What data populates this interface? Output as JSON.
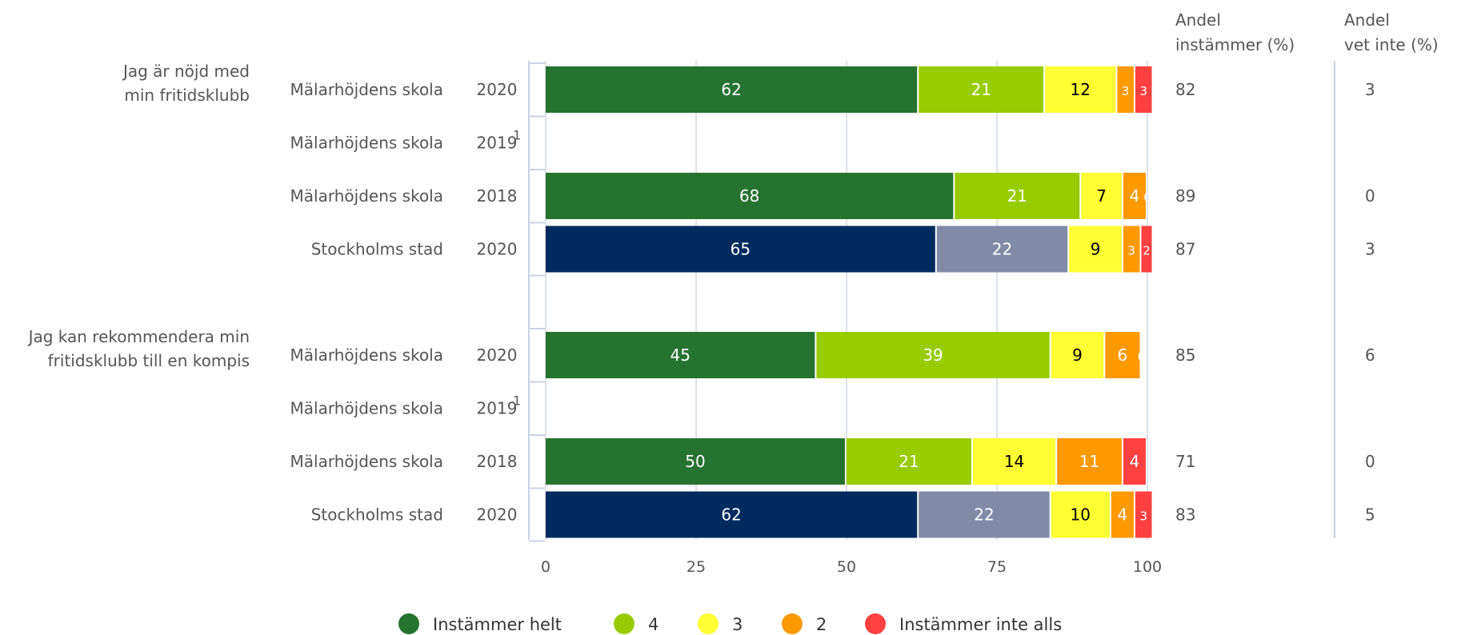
{
  "chart_data": {
    "type": "bar",
    "orientation": "horizontal",
    "stacked": true,
    "xlim": [
      0,
      100
    ],
    "xticks": [
      0,
      25,
      50,
      75,
      100
    ],
    "grid": true,
    "legend_position": "bottom",
    "column_headers": {
      "agree": [
        "Andel",
        "instämmer (%)"
      ],
      "dontknow": [
        "Andel",
        "vet inte (%)"
      ]
    },
    "legend": [
      {
        "label": "Instämmer helt",
        "color": "#267330"
      },
      {
        "label": "4",
        "color": "#99cc00"
      },
      {
        "label": "3",
        "color": "#ffff33"
      },
      {
        "label": "2",
        "color": "#ff9900"
      },
      {
        "label": "Instämmer inte alls",
        "color": "#ff4040"
      }
    ],
    "group_colors": {
      "school": [
        "#267330",
        "#99cc00",
        "#ffff33",
        "#ff9900",
        "#ff4040"
      ],
      "city": [
        "#002b5e",
        "#818ba6",
        "#ffff33",
        "#ff9900",
        "#ff4040"
      ]
    },
    "groups": [
      {
        "question": [
          "Jag är nöjd med",
          "min fritidsklubb"
        ],
        "rows": [
          {
            "label": "Mälarhöjdens skola",
            "year": "2020",
            "footnote": "",
            "style": "school",
            "values": [
              62,
              21,
              12,
              3,
              3
            ],
            "agree": "82",
            "dontknow": "3"
          },
          {
            "label": "Mälarhöjdens skola",
            "year": "2019",
            "footnote": "1",
            "style": "school",
            "values": [],
            "agree": "",
            "dontknow": ""
          },
          {
            "label": "Mälarhöjdens skola",
            "year": "2018",
            "footnote": "",
            "style": "school",
            "values": [
              68,
              21,
              7,
              4,
              0
            ],
            "agree": "89",
            "dontknow": "0"
          },
          {
            "label": "Stockholms stad",
            "year": "2020",
            "footnote": "",
            "style": "city",
            "values": [
              65,
              22,
              9,
              3,
              2
            ],
            "agree": "87",
            "dontknow": "3"
          }
        ]
      },
      {
        "question": [
          "Jag kan rekommendera min",
          "fritidsklubb till en kompis"
        ],
        "rows": [
          {
            "label": "Mälarhöjdens skola",
            "year": "2020",
            "footnote": "",
            "style": "school",
            "values": [
              45,
              39,
              9,
              6,
              0
            ],
            "agree": "85",
            "dontknow": "6"
          },
          {
            "label": "Mälarhöjdens skola",
            "year": "2019",
            "footnote": "1",
            "style": "school",
            "values": [],
            "agree": "",
            "dontknow": ""
          },
          {
            "label": "Mälarhöjdens skola",
            "year": "2018",
            "footnote": "",
            "style": "school",
            "values": [
              50,
              21,
              14,
              11,
              4
            ],
            "agree": "71",
            "dontknow": "0"
          },
          {
            "label": "Stockholms stad",
            "year": "2020",
            "footnote": "",
            "style": "city",
            "values": [
              62,
              22,
              10,
              4,
              3
            ],
            "agree": "83",
            "dontknow": "5"
          }
        ]
      }
    ]
  }
}
